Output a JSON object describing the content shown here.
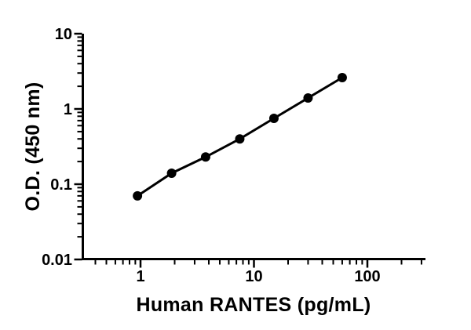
{
  "figure": {
    "background": "#ffffff",
    "ink_color": "#000000"
  },
  "chart_data": {
    "type": "line",
    "title": "",
    "xlabel": "Human RANTES (pg/mL)",
    "ylabel": "O.D. (450 nm)",
    "x_scale": "log",
    "y_scale": "log",
    "xlim": [
      0.315,
      330
    ],
    "ylim": [
      0.01,
      10
    ],
    "x_major_ticks": [
      1,
      10,
      100
    ],
    "x_tick_labels": [
      "1",
      "10",
      "100"
    ],
    "y_major_ticks": [
      0.01,
      0.1,
      1,
      10
    ],
    "y_tick_labels": [
      "0.01",
      "0.1",
      "1",
      "10"
    ],
    "grid": false,
    "legend": false,
    "series": [
      {
        "name": "standard-curve",
        "marker": "filled-circle",
        "marker_radius": 6,
        "color": "#000000",
        "points": [
          {
            "x": 0.94,
            "y": 0.07
          },
          {
            "x": 1.88,
            "y": 0.14
          },
          {
            "x": 3.75,
            "y": 0.23
          },
          {
            "x": 7.5,
            "y": 0.4
          },
          {
            "x": 15,
            "y": 0.75
          },
          {
            "x": 30,
            "y": 1.4
          },
          {
            "x": 60,
            "y": 2.61
          }
        ]
      }
    ]
  }
}
